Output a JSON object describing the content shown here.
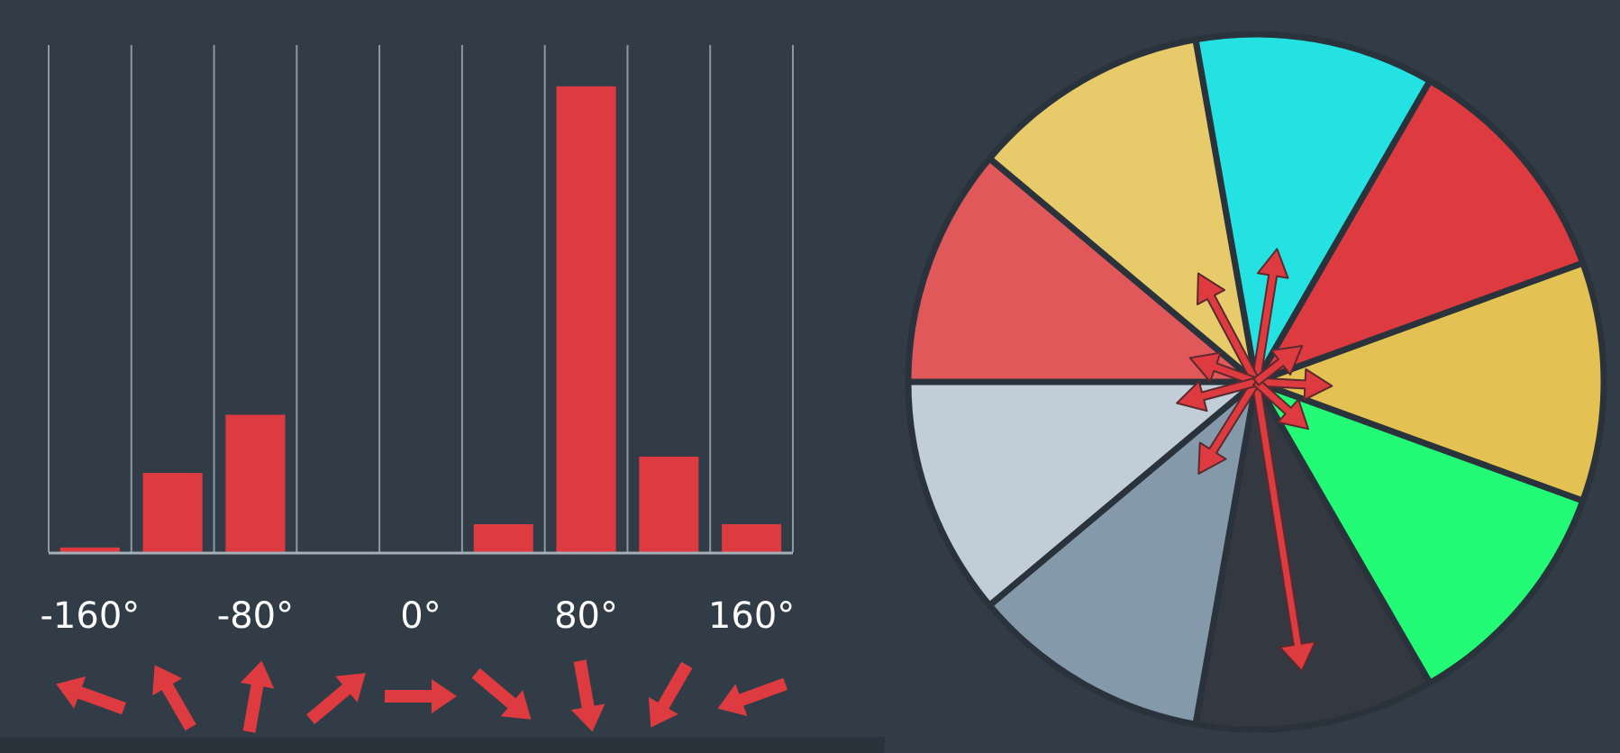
{
  "chart_data": [
    {
      "type": "bar",
      "title": "",
      "xlabel": "",
      "ylabel": "",
      "bin_edges": [
        -180,
        -140,
        -100,
        -60,
        -20,
        20,
        60,
        100,
        140,
        180
      ],
      "categories": [
        "-160°",
        "-120°",
        "-80°",
        "-40°",
        "0°",
        "40°",
        "80°",
        "120°",
        "160°"
      ],
      "tick_labels": [
        {
          "value": -160,
          "label": "-160°"
        },
        {
          "value": -80,
          "label": "-80°"
        },
        {
          "value": 0,
          "label": "0°"
        },
        {
          "value": 80,
          "label": "80°"
        },
        {
          "value": 160,
          "label": "160°"
        }
      ],
      "values": [
        1,
        17,
        29.5,
        0,
        0,
        6,
        100,
        20.5,
        6
      ],
      "ylim": [
        0,
        105
      ],
      "bin_direction_degrees": [
        -160,
        -120,
        -80,
        -40,
        0,
        40,
        80,
        120,
        160
      ],
      "grid": "vertical lines at bin edges",
      "bar_color": "#dd3b40",
      "grid_color": "#8c98a3",
      "label_color": "#ffffff"
    },
    {
      "type": "pie",
      "title": "",
      "slices": [
        {
          "center_deg": 0,
          "color": "#e3c153",
          "value": 1
        },
        {
          "center_deg": 40,
          "color": "#23fb76",
          "value": 1
        },
        {
          "center_deg": 80,
          "color": "#343840",
          "value": 1
        },
        {
          "center_deg": 120,
          "color": "#8499aa",
          "value": 1
        },
        {
          "center_deg": 160,
          "color": "#c1ced7",
          "value": 1
        },
        {
          "center_deg": -160,
          "color": "#e0585a",
          "value": 1
        },
        {
          "center_deg": -120,
          "color": "#e7ca6a",
          "value": 1
        },
        {
          "center_deg": -80,
          "color": "#24e2e1",
          "value": 1
        },
        {
          "center_deg": -40,
          "color": "#dd3b40",
          "value": 1
        }
      ],
      "vectors": [
        {
          "angle_deg": 81,
          "magnitude": 1.0
        },
        {
          "angle_deg": -81,
          "magnitude": 0.46
        },
        {
          "angle_deg": -118,
          "magnitude": 0.42
        },
        {
          "angle_deg": 122,
          "magnitude": 0.37
        },
        {
          "angle_deg": -160,
          "magnitude": 0.24
        },
        {
          "angle_deg": 165,
          "magnitude": 0.28
        },
        {
          "angle_deg": 3,
          "magnitude": 0.26
        },
        {
          "angle_deg": 42,
          "magnitude": 0.24
        },
        {
          "angle_deg": -38,
          "magnitude": 0.2
        }
      ],
      "arrow_color": "#dd3b40"
    }
  ]
}
